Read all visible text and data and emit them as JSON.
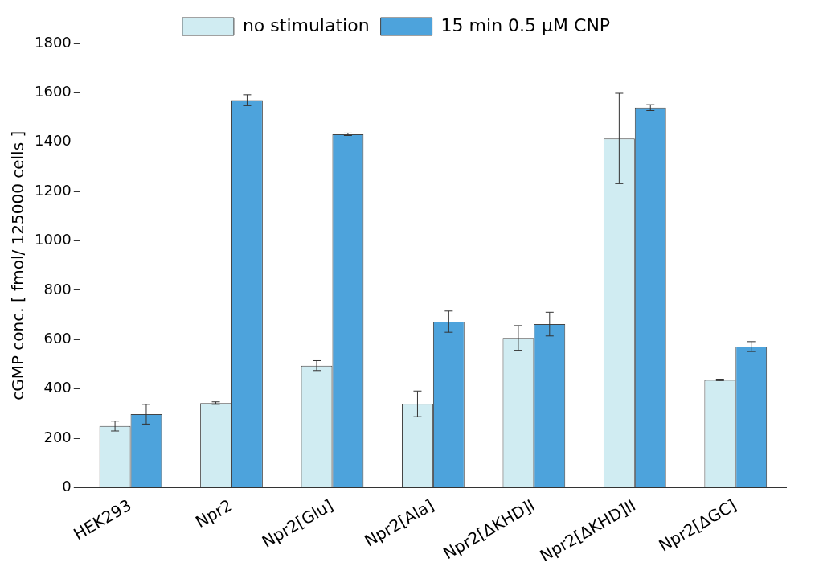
{
  "chart_data": {
    "type": "bar",
    "ylabel": "cGMP conc. [ fmol/ 125000 cells ]",
    "categories": [
      "HEK293",
      "Npr2",
      "Npr2[Glu]",
      "Npr2[Ala]",
      "Npr2[ΔKHD]I",
      "Npr2[ΔKHD]II",
      "Npr2[ΔGC]"
    ],
    "series": [
      {
        "name": "no stimulation",
        "color": "#d0ecf2",
        "values": [
          250,
          343,
          495,
          340,
          607,
          1415,
          437
        ],
        "errors": [
          20,
          5,
          20,
          52,
          50,
          183,
          3
        ]
      },
      {
        "name": "15 min 0.5 µM CNP",
        "color": "#4da3dc",
        "values": [
          298,
          1570,
          1432,
          673,
          663,
          1540,
          572
        ],
        "errors": [
          40,
          22,
          5,
          43,
          48,
          12,
          20
        ]
      }
    ],
    "ylim": [
      0,
      1800
    ],
    "yticks": [
      0,
      200,
      400,
      600,
      800,
      1000,
      1200,
      1400,
      1600,
      1800
    ],
    "legend": "top"
  }
}
